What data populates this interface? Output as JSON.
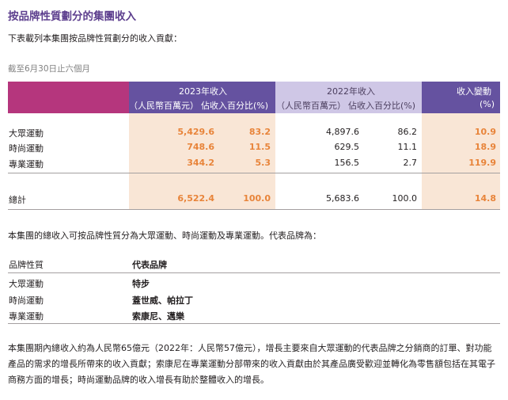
{
  "title": "按品牌性質劃分的集團收入",
  "intro": "下表載列本集團按品牌性質劃分的收入貢獻：",
  "as_of": "截至6月30日止六個月",
  "table": {
    "header": {
      "y2023": "2023年收入",
      "y2022": "2022年收入",
      "change": "收入變動",
      "rmb": "（人民幣百萬元）",
      "pct": "佔收入百分比(%)",
      "change_unit": "(%)"
    },
    "rows": [
      {
        "label": "大眾運動",
        "rev2023": "5,429.6",
        "pct2023": "83.2",
        "rev2022": "4,897.6",
        "pct2022": "86.2",
        "change": "10.9"
      },
      {
        "label": "時尚運動",
        "rev2023": "748.6",
        "pct2023": "11.5",
        "rev2022": "629.5",
        "pct2022": "11.1",
        "change": "18.9"
      },
      {
        "label": "專業運動",
        "rev2023": "344.2",
        "pct2023": "5.3",
        "rev2022": "156.5",
        "pct2022": "2.7",
        "change": "119.9"
      }
    ],
    "total": {
      "label": "總計",
      "rev2023": "6,522.4",
      "pct2023": "100.0",
      "rev2022": "5,683.6",
      "pct2022": "100.0",
      "change": "14.8"
    }
  },
  "brands_intro": "本集團的總收入可按品牌性質分為大眾運動、時尚運動及專業運動。代表品牌為：",
  "brands": {
    "col1": "品牌性質",
    "col2": "代表品牌",
    "rows": [
      {
        "cat": "大眾運動",
        "names": "特步"
      },
      {
        "cat": "時尚運動",
        "names": "蓋世威、帕拉丁"
      },
      {
        "cat": "專業運動",
        "names": "索康尼、邁樂"
      }
    ]
  },
  "closing": "本集團期內總收入約為人民幣65億元（2022年：人民幣57億元），增長主要來自大眾運動的代表品牌之分銷商的訂單、對功能產品的需求的增長所帶來的收入貢獻；索康尼在專業運動分部帶來的收入貢獻由於其產品廣受歡迎並轉化為零售額包括在其電子商務方面的增長；時尚運動品牌的收入增長有助於整體收入的增長。",
  "colors": {
    "accent": "#5d3f8e",
    "magenta": "#b5367d",
    "purple": "#6552a0",
    "lavender": "#cfc7e6",
    "peach": "#f9e6d6",
    "orange": "#e8843a"
  }
}
